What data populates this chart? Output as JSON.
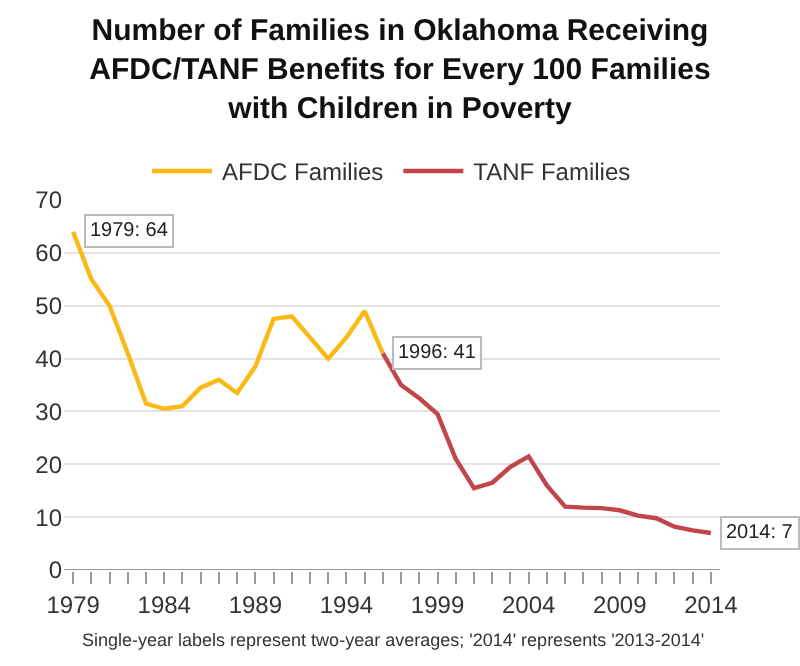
{
  "chart_data": {
    "type": "line",
    "title": "Number of Families in Oklahoma Receiving AFDC/TANF Benefits for Every 100 Families with Children in Poverty",
    "series": [
      {
        "name": "AFDC Families",
        "color": "#fbb915",
        "x": [
          1979,
          1980,
          1981,
          1982,
          1983,
          1984,
          1985,
          1986,
          1987,
          1988,
          1989,
          1990,
          1991,
          1992,
          1993,
          1994,
          1995,
          1996
        ],
        "values": [
          64,
          55,
          50,
          41,
          31.5,
          30.5,
          31,
          34.5,
          36,
          33.5,
          38.5,
          47.5,
          48,
          44,
          40,
          44,
          49,
          41
        ]
      },
      {
        "name": "TANF Families",
        "color": "#c1464b",
        "x": [
          1996,
          1997,
          1998,
          1999,
          2000,
          2001,
          2002,
          2003,
          2004,
          2005,
          2006,
          2007,
          2008,
          2009,
          2010,
          2011,
          2012,
          2013,
          2014
        ],
        "values": [
          41,
          35,
          32.5,
          29.5,
          21,
          15.5,
          16.5,
          19.5,
          21.5,
          16,
          12,
          11.8,
          11.7,
          11.3,
          10.3,
          9.8,
          8.2,
          7.5,
          7
        ]
      }
    ],
    "xlim": [
      1978.5,
      2014.5
    ],
    "xticks": [
      1979,
      {
        "value": 1980,
        "label": null
      },
      {
        "value": 1981,
        "label": null
      },
      {
        "value": 1982,
        "label": null
      },
      {
        "value": 1983,
        "label": null
      },
      1984,
      {
        "value": 1985,
        "label": null
      },
      {
        "value": 1986,
        "label": null
      },
      {
        "value": 1987,
        "label": null
      },
      {
        "value": 1988,
        "label": null
      },
      1989,
      {
        "value": 1990,
        "label": null
      },
      {
        "value": 1991,
        "label": null
      },
      {
        "value": 1992,
        "label": null
      },
      {
        "value": 1993,
        "label": null
      },
      1994,
      {
        "value": 1995,
        "label": null
      },
      {
        "value": 1996,
        "label": null
      },
      {
        "value": 1997,
        "label": null
      },
      {
        "value": 1998,
        "label": null
      },
      1999,
      {
        "value": 2000,
        "label": null
      },
      {
        "value": 2001,
        "label": null
      },
      {
        "value": 2002,
        "label": null
      },
      {
        "value": 2003,
        "label": null
      },
      2004,
      {
        "value": 2005,
        "label": null
      },
      {
        "value": 2006,
        "label": null
      },
      {
        "value": 2007,
        "label": null
      },
      {
        "value": 2008,
        "label": null
      },
      2009,
      {
        "value": 2010,
        "label": null
      },
      {
        "value": 2011,
        "label": null
      },
      {
        "value": 2012,
        "label": null
      },
      {
        "value": 2013,
        "label": null
      },
      2014
    ],
    "ylim": [
      0,
      70
    ],
    "yticks": [
      0,
      10,
      20,
      30,
      40,
      50,
      60,
      70
    ],
    "grid": "y",
    "legend": "top",
    "marker": "none",
    "line_style": "solid",
    "annotations": [
      {
        "text": "1979: 64",
        "x": 1979,
        "y": 64
      },
      {
        "text": "1996: 41",
        "x": 1996,
        "y": 41
      },
      {
        "text": "2014: 7",
        "x": 2014,
        "y": 7
      },
      "Single-year labels represent two-year averages; '2014' represents '2013-2014'"
    ]
  }
}
